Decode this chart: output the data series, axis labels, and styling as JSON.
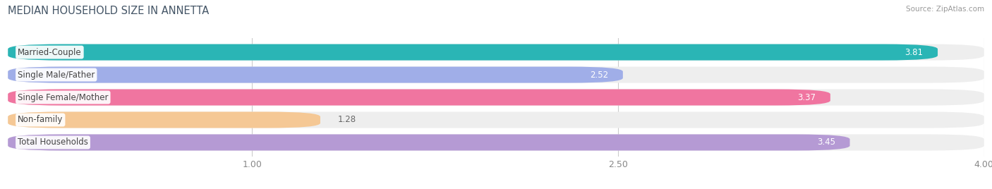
{
  "title": "MEDIAN HOUSEHOLD SIZE IN ANNETTA",
  "source": "Source: ZipAtlas.com",
  "categories": [
    "Married-Couple",
    "Single Male/Father",
    "Single Female/Mother",
    "Non-family",
    "Total Households"
  ],
  "values": [
    3.81,
    2.52,
    3.37,
    1.28,
    3.45
  ],
  "bar_colors": [
    "#2ab5b5",
    "#a0aee8",
    "#f075a0",
    "#f5c895",
    "#b59ad4"
  ],
  "bar_bg_color": "#eeeeee",
  "xmin": 0,
  "xmax": 4.0,
  "xticks": [
    1.0,
    2.5,
    4.0
  ],
  "label_fontsize": 8.5,
  "value_fontsize": 8.5,
  "title_fontsize": 10.5,
  "source_fontsize": 7.5,
  "background_color": "#ffffff",
  "bar_height": 0.72,
  "value_color_inside": "#ffffff",
  "value_color_outside": "#666666",
  "label_bg_color": "#ffffff",
  "grid_color": "#cccccc",
  "tick_color": "#888888",
  "title_color": "#445566"
}
